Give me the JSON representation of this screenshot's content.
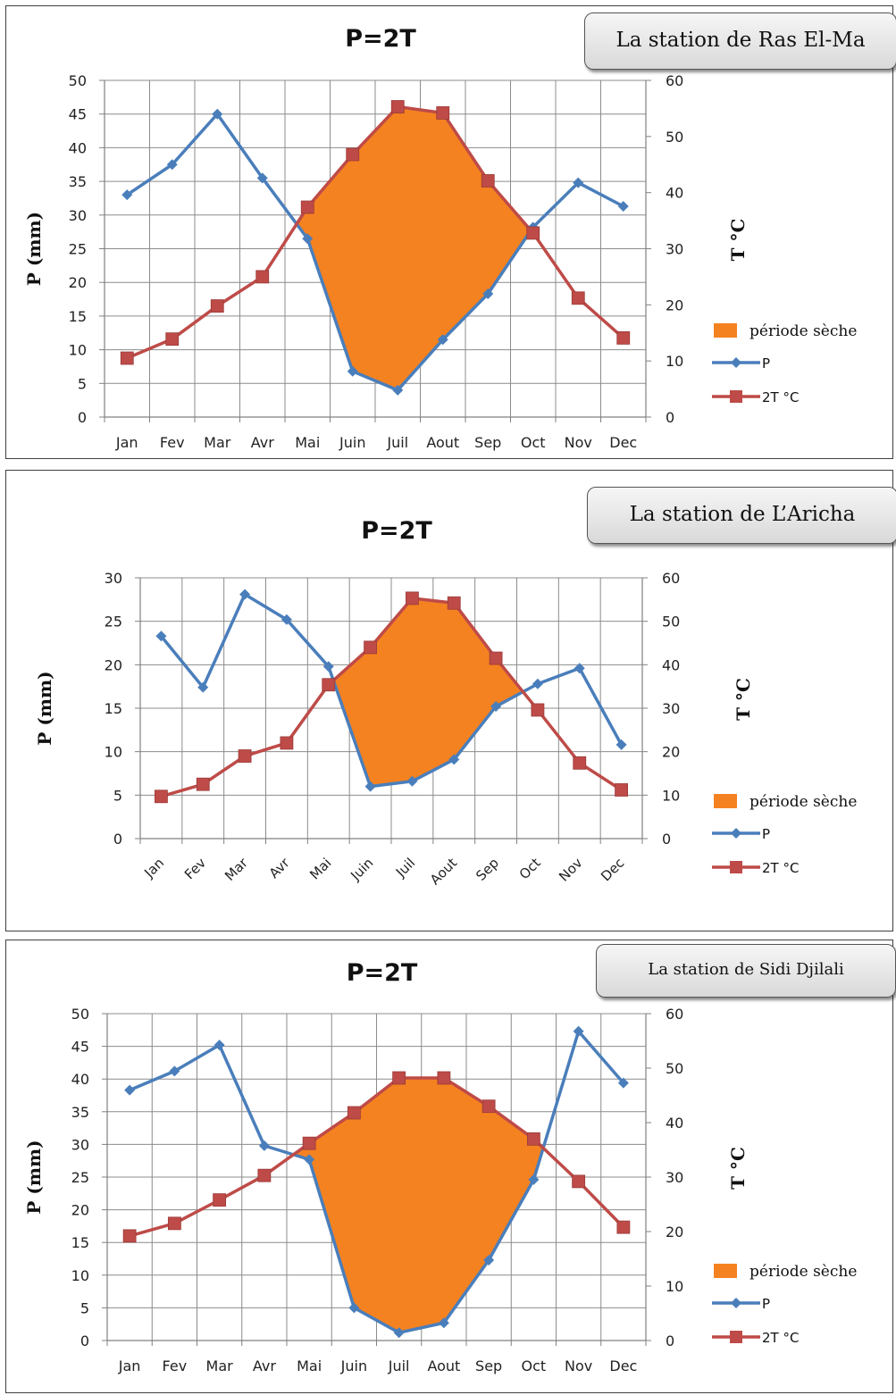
{
  "charts": [
    {
      "station_label": "La station de Ras El-Ma",
      "chart_data": {
        "type": "line",
        "title": "P=2T",
        "categories": [
          "Jan",
          "Fev",
          "Mar",
          "Avr",
          "Mai",
          "Juin",
          "Juil",
          "Aout",
          "Sep",
          "Oct",
          "Nov",
          "Dec"
        ],
        "ylabel": "P (mm)",
        "y2label": "T °C",
        "ylim": [
          0,
          50
        ],
        "y2lim": [
          0,
          60
        ],
        "yticks": [
          0,
          5,
          10,
          15,
          20,
          25,
          30,
          35,
          40,
          45,
          50
        ],
        "y2ticks": [
          0,
          10,
          20,
          30,
          40,
          50,
          60
        ],
        "x_label_rotated": false,
        "series": [
          {
            "name": "P",
            "axis": "left",
            "color": "#4a7ebb",
            "marker": "diamond",
            "values": [
              33,
              37.5,
              45,
              35.5,
              26.5,
              6.8,
              4,
              11.5,
              18.3,
              28.2,
              34.8,
              31.3
            ]
          },
          {
            "name": "2T °C",
            "axis": "right",
            "color": "#be4b48",
            "marker": "square",
            "values": [
              10.5,
              13.9,
              19.8,
              25,
              37.4,
              46.8,
              55.3,
              54.2,
              42.1,
              32.8,
              21.2,
              14.1
            ]
          }
        ],
        "legend": {
          "position": "right",
          "items": [
            "période sèche",
            "P",
            "2T °C"
          ]
        },
        "shaded_region": {
          "name": "période sèche",
          "color": "#f58220"
        }
      }
    },
    {
      "station_label": "La station de L’Aricha",
      "chart_data": {
        "type": "line",
        "title": "P=2T",
        "categories": [
          "Jan",
          "Fev",
          "Mar",
          "Avr",
          "Mai",
          "Juin",
          "Juil",
          "Aout",
          "Sep",
          "Oct",
          "Nov",
          "Dec"
        ],
        "ylabel": "P (mm)",
        "y2label": "T °C",
        "ylim": [
          0,
          30
        ],
        "y2lim": [
          0,
          60
        ],
        "yticks": [
          0,
          5,
          10,
          15,
          20,
          25,
          30
        ],
        "y2ticks": [
          0,
          10,
          20,
          30,
          40,
          50,
          60
        ],
        "x_label_rotated": true,
        "series": [
          {
            "name": "P",
            "axis": "left",
            "color": "#4a7ebb",
            "marker": "diamond",
            "values": [
              23.3,
              17.4,
              28.1,
              25.2,
              19.8,
              6,
              6.6,
              9.1,
              15.2,
              17.8,
              19.6,
              10.8
            ]
          },
          {
            "name": "2T °C",
            "axis": "right",
            "color": "#be4b48",
            "marker": "square",
            "values": [
              9.7,
              12.5,
              19,
              22,
              35.4,
              44,
              55.3,
              54.2,
              41.5,
              29.6,
              17.4,
              11.2
            ]
          }
        ],
        "legend": {
          "position": "right",
          "items": [
            "période sèche",
            "P",
            "2T °C"
          ]
        },
        "shaded_region": {
          "name": "période sèche",
          "color": "#f58220"
        }
      }
    },
    {
      "station_label": "La station de Sidi Djilali",
      "chart_data": {
        "type": "line",
        "title": "P=2T",
        "categories": [
          "Jan",
          "Fev",
          "Mar",
          "Avr",
          "Mai",
          "Juin",
          "Juil",
          "Aout",
          "Sep",
          "Oct",
          "Nov",
          "Dec"
        ],
        "ylabel": "P (mm)",
        "y2label": "T °C",
        "ylim": [
          0,
          50
        ],
        "y2lim": [
          0,
          60
        ],
        "yticks": [
          0,
          5,
          10,
          15,
          20,
          25,
          30,
          35,
          40,
          45,
          50
        ],
        "y2ticks": [
          0,
          10,
          20,
          30,
          40,
          50,
          60
        ],
        "x_label_rotated": false,
        "series": [
          {
            "name": "P",
            "axis": "left",
            "color": "#4a7ebb",
            "marker": "diamond",
            "values": [
              38.3,
              41.2,
              45.2,
              29.8,
              27.7,
              5,
              1.2,
              2.7,
              12.3,
              24.6,
              47.3,
              39.4
            ]
          },
          {
            "name": "2T °C",
            "axis": "right",
            "color": "#be4b48",
            "marker": "square",
            "values": [
              19.2,
              21.5,
              25.8,
              30.3,
              36.2,
              41.8,
              48.2,
              48.2,
              43,
              37,
              29.2,
              20.8
            ]
          }
        ],
        "legend": {
          "position": "right",
          "items": [
            "période sèche",
            "P",
            "2T °C"
          ]
        },
        "shaded_region": {
          "name": "période sèche",
          "color": "#f58220"
        }
      }
    }
  ]
}
